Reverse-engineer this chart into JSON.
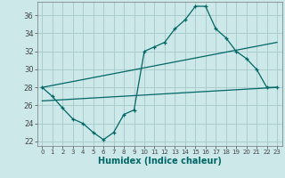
{
  "xlabel": "Humidex (Indice chaleur)",
  "bg_color": "#cce8e8",
  "grid_color": "#aacccc",
  "line_color": "#006666",
  "xlim": [
    -0.5,
    23.5
  ],
  "ylim": [
    21.5,
    37.5
  ],
  "xticks": [
    0,
    1,
    2,
    3,
    4,
    5,
    6,
    7,
    8,
    9,
    10,
    11,
    12,
    13,
    14,
    15,
    16,
    17,
    18,
    19,
    20,
    21,
    22,
    23
  ],
  "yticks": [
    22,
    24,
    26,
    28,
    30,
    32,
    34,
    36
  ],
  "line1_x": [
    0,
    1,
    2,
    3,
    4,
    5,
    6,
    7,
    8,
    9,
    10,
    11,
    12,
    13,
    14,
    15,
    16,
    17,
    18,
    19,
    20,
    21,
    22,
    23
  ],
  "line1_y": [
    28,
    27,
    25.7,
    24.5,
    24,
    23,
    22.2,
    23,
    25,
    25.5,
    32,
    32.5,
    33,
    34.5,
    35.5,
    37,
    37,
    34.5,
    33.5,
    32,
    31.2,
    30,
    28,
    28
  ],
  "line2_x": [
    0,
    23
  ],
  "line2_y": [
    28.0,
    33.0
  ],
  "line3_x": [
    0,
    23
  ],
  "line3_y": [
    26.5,
    28.0
  ]
}
